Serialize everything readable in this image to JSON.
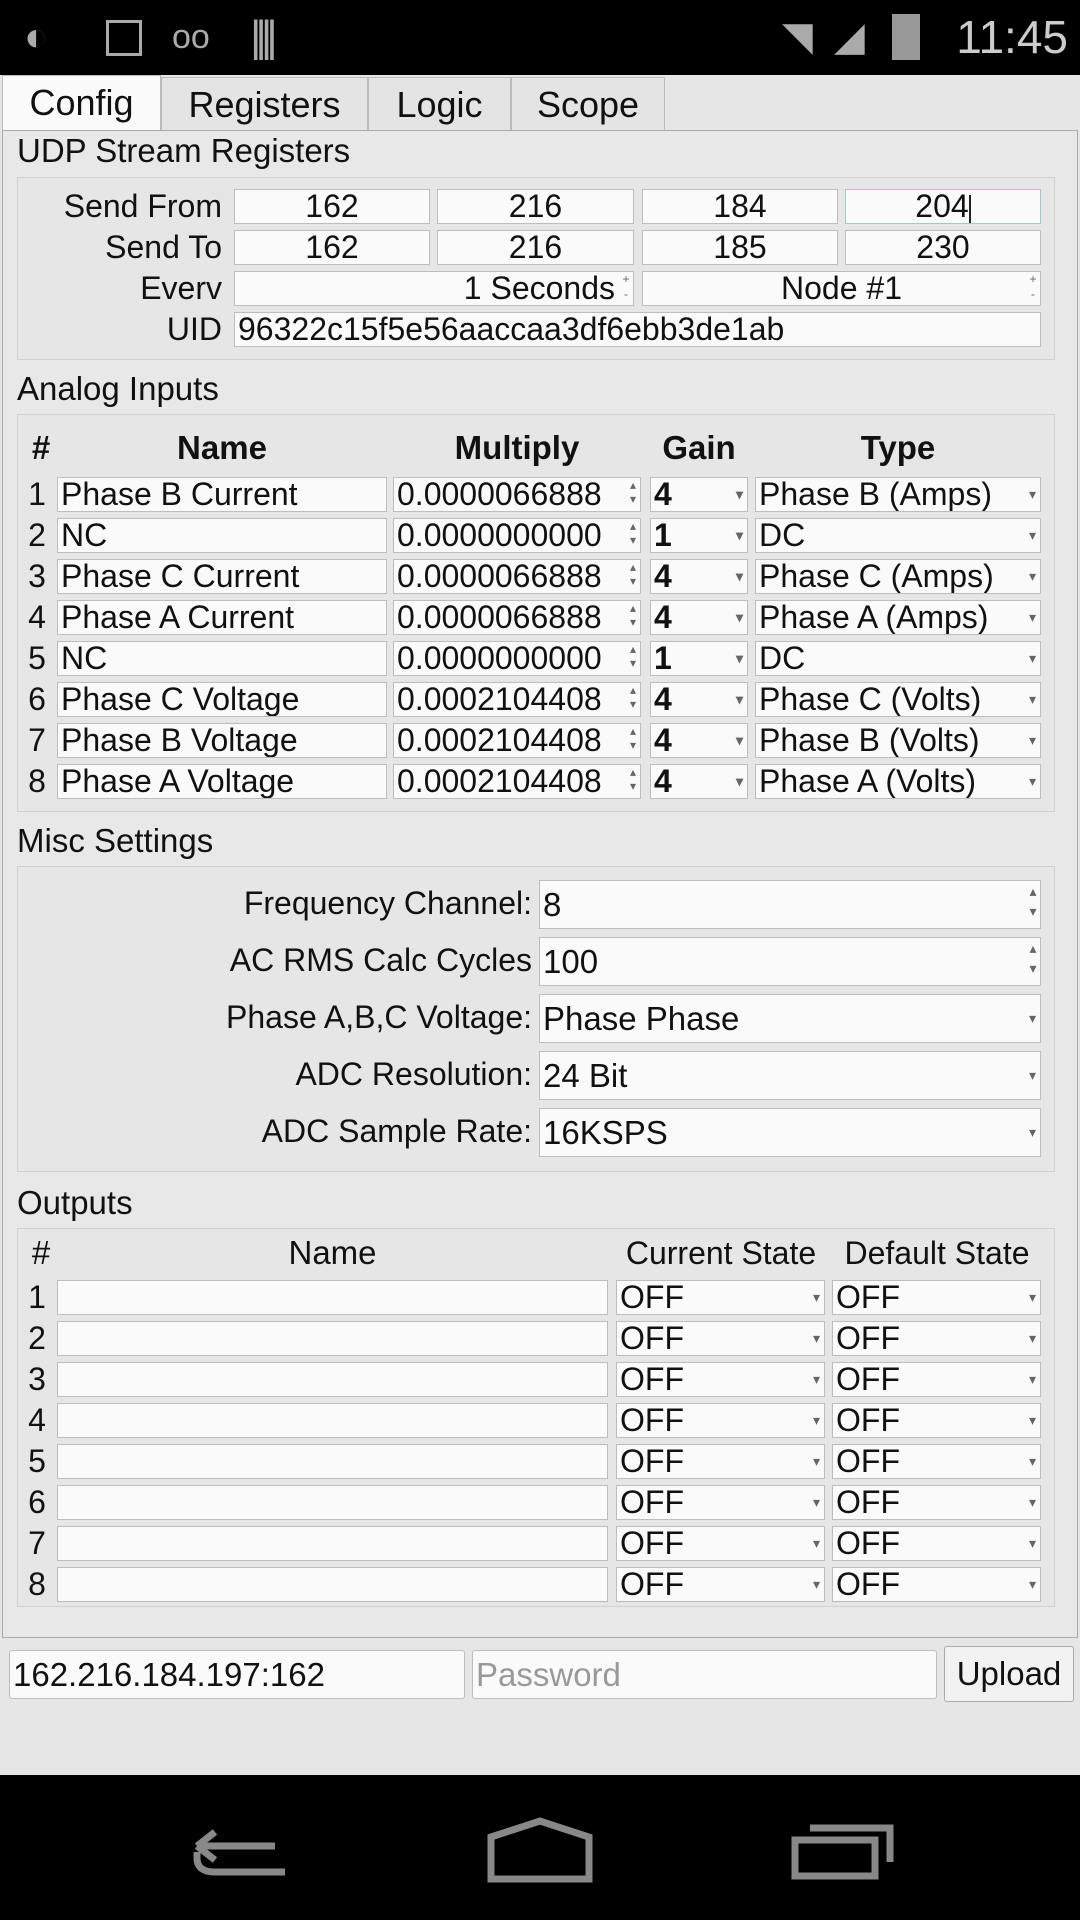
{
  "status_bar": {
    "time": "11:45",
    "left_icons": [
      "brightness-icon",
      "image-icon",
      "voicemail-icon",
      "barcode-icon"
    ],
    "right_icons": [
      "wifi-icon",
      "signal-icon",
      "battery-charging-icon"
    ]
  },
  "tabs": [
    {
      "label": "Config",
      "active": true
    },
    {
      "label": "Registers"
    },
    {
      "label": "Logic"
    },
    {
      "label": "Scope"
    }
  ],
  "udp": {
    "title": "UDP Stream Registers",
    "send_from_label": "Send From",
    "send_from": [
      "162",
      "216",
      "184",
      "204"
    ],
    "send_to_label": "Send To",
    "send_to": [
      "162",
      "216",
      "185",
      "230"
    ],
    "every_label": "Everv",
    "every_value": "1 Seconds",
    "node_value": "Node #1",
    "uid_label": "UID",
    "uid_value": "96322c15f5e56aaccaa3df6ebb3de1ab"
  },
  "analog": {
    "title": "Analog Inputs",
    "headers": [
      "#",
      "Name",
      "Multiply",
      "Gain",
      "Type"
    ],
    "rows": [
      {
        "num": "1",
        "name": "Phase B Current",
        "multiply": "0.0000066888",
        "gain": "4",
        "type": "Phase B (Amps)"
      },
      {
        "num": "2",
        "name": "NC",
        "multiply": "0.0000000000",
        "gain": "1",
        "type": "DC"
      },
      {
        "num": "3",
        "name": "Phase C Current",
        "multiply": "0.0000066888",
        "gain": "4",
        "type": "Phase C (Amps)"
      },
      {
        "num": "4",
        "name": "Phase A Current",
        "multiply": "0.0000066888",
        "gain": "4",
        "type": "Phase A (Amps)"
      },
      {
        "num": "5",
        "name": "NC",
        "multiply": "0.0000000000",
        "gain": "1",
        "type": "DC"
      },
      {
        "num": "6",
        "name": "Phase C Voltage",
        "multiply": "0.0002104408",
        "gain": "4",
        "type": "Phase C (Volts)"
      },
      {
        "num": "7",
        "name": "Phase B Voltage",
        "multiply": "0.0002104408",
        "gain": "4",
        "type": "Phase B (Volts)"
      },
      {
        "num": "8",
        "name": "Phase A Voltage",
        "multiply": "0.0002104408",
        "gain": "4",
        "type": "Phase A (Volts)"
      }
    ]
  },
  "misc": {
    "title": "Misc Settings",
    "rows": [
      {
        "label": "Frequency Channel:",
        "value": "8",
        "control": "spinner"
      },
      {
        "label": "AC RMS Calc Cycles",
        "value": "100",
        "control": "spinner"
      },
      {
        "label": "Phase A,B,C Voltage:",
        "value": "Phase Phase",
        "control": "dropdown"
      },
      {
        "label": "ADC Resolution:",
        "value": "24 Bit",
        "control": "dropdown"
      },
      {
        "label": "ADC Sample Rate:",
        "value": "16KSPS",
        "control": "dropdown"
      }
    ]
  },
  "outputs": {
    "title": "Outputs",
    "headers": [
      "#",
      "Name",
      "Current State",
      "Default State"
    ],
    "rows": [
      {
        "num": "1",
        "name": "",
        "current": "OFF",
        "default": "OFF"
      },
      {
        "num": "2",
        "name": "",
        "current": "OFF",
        "default": "OFF"
      },
      {
        "num": "3",
        "name": "",
        "current": "OFF",
        "default": "OFF"
      },
      {
        "num": "4",
        "name": "",
        "current": "OFF",
        "default": "OFF"
      },
      {
        "num": "5",
        "name": "",
        "current": "OFF",
        "default": "OFF"
      },
      {
        "num": "6",
        "name": "",
        "current": "OFF",
        "default": "OFF"
      },
      {
        "num": "7",
        "name": "",
        "current": "OFF",
        "default": "OFF"
      },
      {
        "num": "8",
        "name": "",
        "current": "OFF",
        "default": "OFF"
      }
    ]
  },
  "bottom": {
    "address_value": "162.216.184.197:162",
    "password_placeholder": "Password",
    "upload_label": "Upload"
  },
  "nav": {
    "icons": [
      "back-icon",
      "home-icon",
      "recent-apps-icon"
    ]
  }
}
